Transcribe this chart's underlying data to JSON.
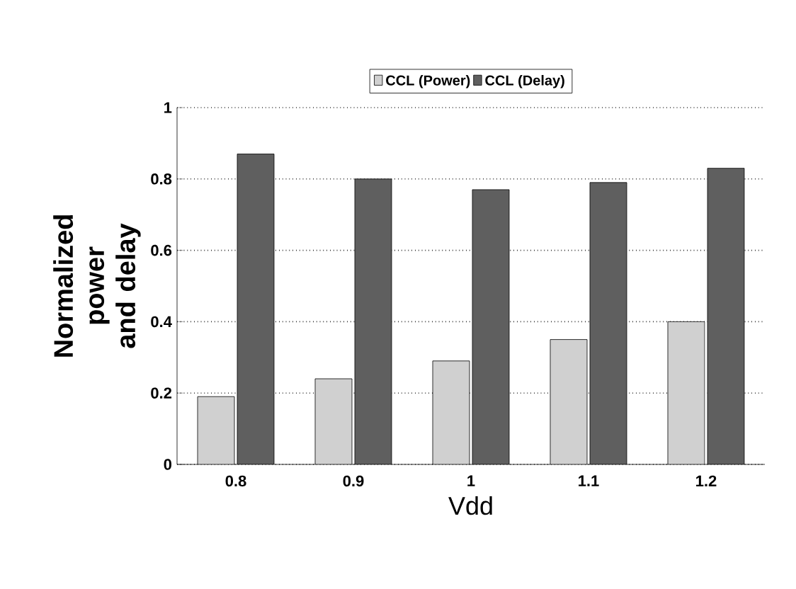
{
  "chart_data": {
    "type": "bar",
    "xlabel": "Vdd",
    "ylabel": "Normalized power and delay",
    "categories": [
      "0.8",
      "0.9",
      "1",
      "1.1",
      "1.2"
    ],
    "series": [
      {
        "name": "CCL (Power)",
        "color": "#d0d0d0",
        "values": [
          0.19,
          0.24,
          0.29,
          0.35,
          0.4
        ]
      },
      {
        "name": "CCL (Delay)",
        "color": "#5f5f5f",
        "values": [
          0.87,
          0.8,
          0.77,
          0.79,
          0.83
        ]
      }
    ],
    "ylim": [
      0,
      1
    ],
    "yticks": [
      0,
      0.2,
      0.4,
      0.6,
      0.8,
      1
    ],
    "grid": "y",
    "legend": "top"
  }
}
